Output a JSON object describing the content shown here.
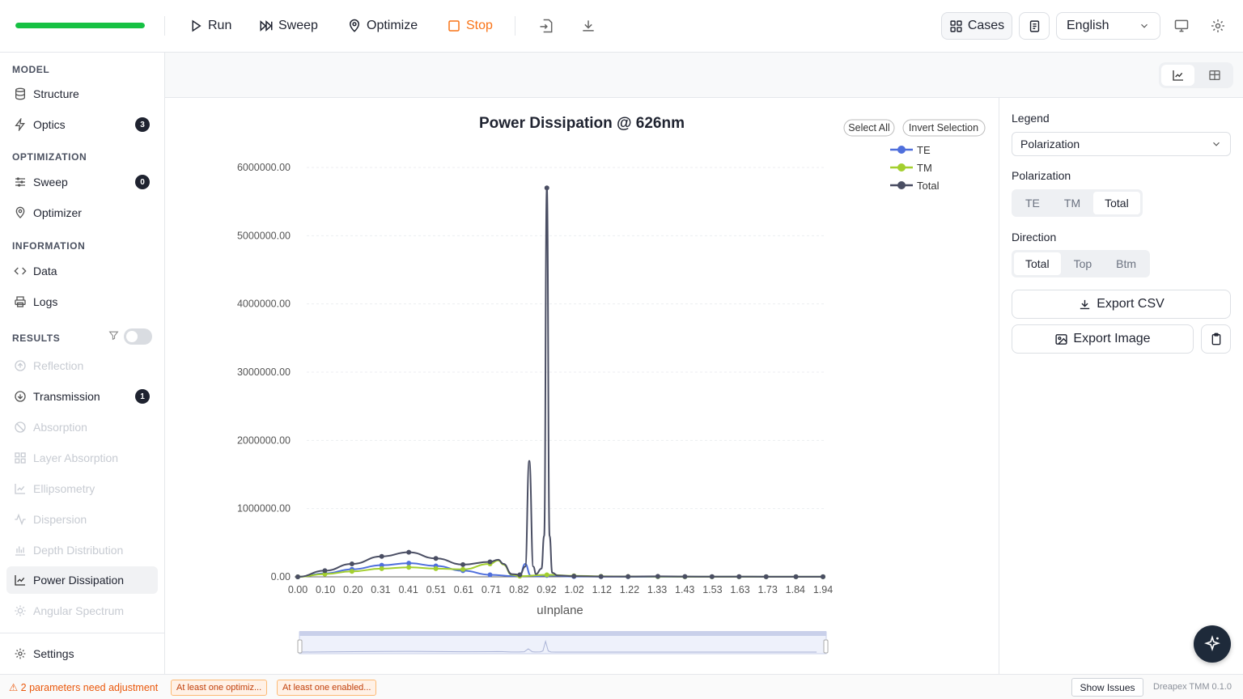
{
  "toolbar": {
    "progress": 1.0,
    "run_label": "Run",
    "sweep_label": "Sweep",
    "optimize_label": "Optimize",
    "stop_label": "Stop",
    "cases_label": "Cases",
    "language": "English"
  },
  "sidebar": {
    "model_title": "MODEL",
    "optimization_title": "OPTIMIZATION",
    "information_title": "INFORMATION",
    "results_title": "RESULTS",
    "items": {
      "structure": "Structure",
      "optics": "Optics",
      "optics_badge": "3",
      "sweep": "Sweep",
      "sweep_badge": "0",
      "optimizer": "Optimizer",
      "data": "Data",
      "logs": "Logs",
      "reflection": "Reflection",
      "transmission": "Transmission",
      "transmission_badge": "1",
      "absorption": "Absorption",
      "layer_absorption": "Layer Absorption",
      "ellipsometry": "Ellipsometry",
      "dispersion": "Dispersion",
      "depth_distribution": "Depth Distribution",
      "power_dissipation": "Power Dissipation",
      "angular_spectrum": "Angular Spectrum",
      "settings": "Settings"
    }
  },
  "right_panel": {
    "legend_label": "Legend",
    "legend_value": "Polarization",
    "polarization_label": "Polarization",
    "polarization_options": [
      "TE",
      "TM",
      "Total"
    ],
    "polarization_selected": "Total",
    "direction_label": "Direction",
    "direction_options": [
      "Total",
      "Top",
      "Btm"
    ],
    "direction_selected": "Total",
    "export_csv": "Export CSV",
    "export_image": "Export Image"
  },
  "chart_controls": {
    "select_all": "Select All",
    "invert_selection": "Invert Selection"
  },
  "status": {
    "warning": "⚠ 2 parameters need adjustment",
    "chip1": "At least one optimiz...",
    "chip2": "At least one enabled...",
    "show_issues": "Show Issues",
    "version": "Dreapex TMM 0.1.0"
  },
  "colors": {
    "progress": "#16c143",
    "stop": "#f97316",
    "te": "#4f6fdc",
    "tm": "#a3cf2e",
    "total": "#4a4e63"
  },
  "chart_data": {
    "type": "line",
    "title": "Power Dissipation @ 626nm",
    "xlabel": "uInplane",
    "ylabel": "",
    "xlim": [
      0.0,
      1.97
    ],
    "ylim": [
      0,
      6400000
    ],
    "grid": true,
    "legend_position": "top-right",
    "x_ticks": [
      "0.00",
      "0.10",
      "0.20",
      "0.31",
      "0.41",
      "0.51",
      "0.61",
      "0.71",
      "0.82",
      "0.92",
      "1.02",
      "1.12",
      "1.22",
      "1.33",
      "1.43",
      "1.53",
      "1.63",
      "1.73",
      "1.84",
      "1.94"
    ],
    "y_ticks": [
      "0.00",
      "1000000.00",
      "2000000.00",
      "3000000.00",
      "4000000.00",
      "5000000.00",
      "6000000.00"
    ],
    "series": [
      {
        "name": "TE",
        "x": [
          0.0,
          0.1,
          0.2,
          0.31,
          0.41,
          0.51,
          0.61,
          0.71,
          0.8,
          0.82,
          0.84,
          0.86,
          0.88,
          0.92,
          1.02,
          1.12,
          1.22,
          1.33,
          1.43,
          1.53,
          1.63,
          1.73,
          1.84,
          1.94
        ],
        "y": [
          0,
          50000,
          110000,
          170000,
          200000,
          160000,
          90000,
          30000,
          10000,
          20000,
          190000,
          20000,
          10000,
          20000,
          5000,
          3000,
          2000,
          2000,
          1000,
          1000,
          1000,
          1000,
          1000,
          1000
        ]
      },
      {
        "name": "TM",
        "x": [
          0.0,
          0.1,
          0.2,
          0.31,
          0.41,
          0.51,
          0.61,
          0.71,
          0.74,
          0.76,
          0.79,
          0.82,
          0.92,
          1.02,
          1.12,
          1.22,
          1.33,
          1.43,
          1.53,
          1.63,
          1.73,
          1.84,
          1.94
        ],
        "y": [
          0,
          40000,
          80000,
          120000,
          140000,
          120000,
          110000,
          190000,
          240000,
          180000,
          30000,
          10000,
          30000,
          15000,
          8000,
          5000,
          3000,
          2000,
          2000,
          1000,
          1000,
          1000,
          1000
        ]
      },
      {
        "name": "Total",
        "x": [
          0.0,
          0.1,
          0.2,
          0.31,
          0.41,
          0.51,
          0.61,
          0.71,
          0.74,
          0.76,
          0.79,
          0.82,
          0.84,
          0.855,
          0.87,
          0.88,
          0.9,
          0.91,
          0.92,
          0.93,
          0.94,
          0.96,
          1.02,
          1.12,
          1.22,
          1.33,
          1.43,
          1.53,
          1.63,
          1.73,
          1.84,
          1.94
        ],
        "y": [
          0,
          90000,
          190000,
          300000,
          360000,
          270000,
          180000,
          220000,
          250000,
          190000,
          40000,
          30000,
          150000,
          1700000,
          150000,
          40000,
          120000,
          600000,
          5700000,
          600000,
          60000,
          20000,
          10000,
          5000,
          5000,
          8000,
          4000,
          3000,
          3000,
          2000,
          2000,
          1000
        ]
      }
    ]
  }
}
